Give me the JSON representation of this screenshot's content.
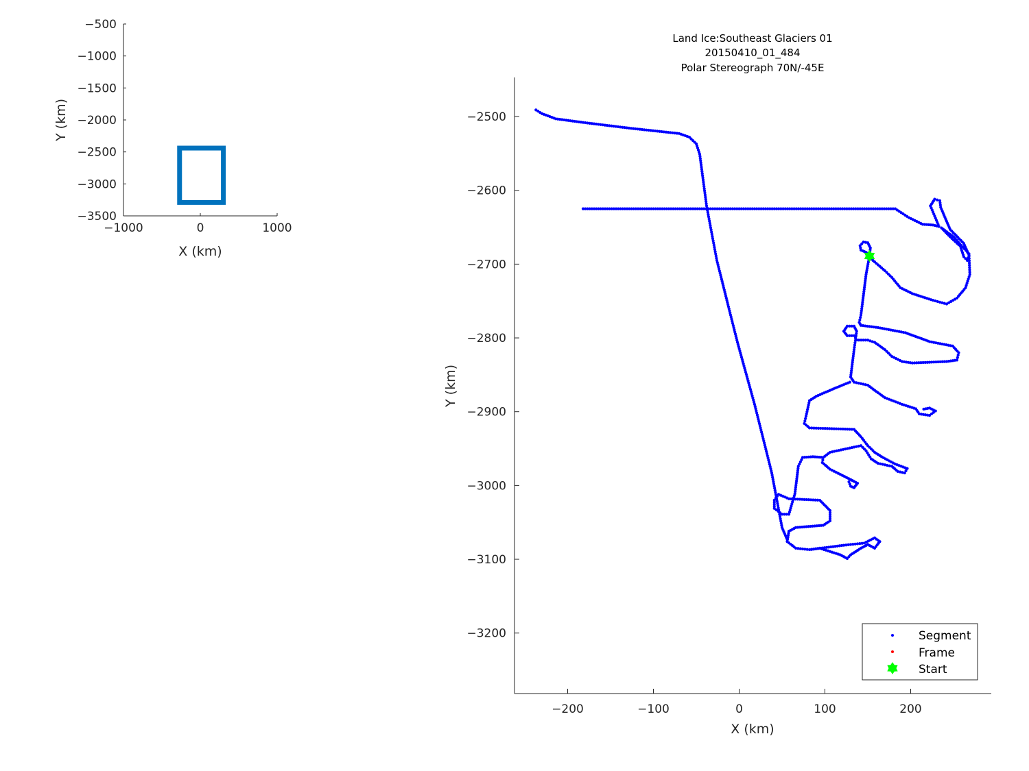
{
  "chart_data": [
    {
      "type": "scatter",
      "xlabel": "X (km)",
      "ylabel": "Y (km)",
      "xlim": [
        -1000,
        1000
      ],
      "ylim": [
        -3500,
        -500
      ],
      "xticks": [
        "-1000",
        "0",
        "1000"
      ],
      "yticks": [
        "-500",
        "-1000",
        "-1500",
        "-2000",
        "-2500",
        "-3000",
        "-3500"
      ],
      "box": {
        "x": [
          -270,
          300
        ],
        "y": [
          -3290,
          -2440
        ]
      },
      "color": "#0072BD"
    },
    {
      "type": "scatter",
      "title": [
        "Land Ice:Southeast Glaciers 01",
        "20150410_01_484",
        "Polar Stereograph 70N/-45E"
      ],
      "xlabel": "X (km)",
      "ylabel": "Y (km)",
      "xlim": [
        -262,
        294
      ],
      "ylim": [
        -3282,
        -2447
      ],
      "xticks": [
        "-200",
        "-100",
        "0",
        "100",
        "200"
      ],
      "yticks": [
        "-2500",
        "-2600",
        "-2700",
        "-2800",
        "-2900",
        "-3000",
        "-3100",
        "-3200"
      ],
      "legend": {
        "placement": "bottom-right",
        "entries": [
          {
            "name": "Segment",
            "color": "#0000FF",
            "marker": "dot"
          },
          {
            "name": "Frame",
            "color": "#FF0000",
            "marker": "dot"
          },
          {
            "name": "Start",
            "color": "#00FF00",
            "marker": "hexagram"
          }
        ]
      },
      "start": [
        152,
        -2689
      ],
      "segment_tracks": [
        [
          [
            -237,
            -2491
          ],
          [
            -230,
            -2496
          ],
          [
            -214,
            -2503
          ],
          [
            -182,
            -2508
          ],
          [
            -126,
            -2516
          ],
          [
            -70,
            -2523
          ],
          [
            -58,
            -2528
          ],
          [
            -50,
            -2537
          ],
          [
            -46,
            -2551
          ],
          [
            -38,
            -2621
          ],
          [
            -26,
            -2695
          ],
          [
            -2,
            -2806
          ],
          [
            18,
            -2890
          ],
          [
            38,
            -2983
          ],
          [
            50,
            -3057
          ],
          [
            57,
            -3076
          ]
        ],
        [
          [
            -182,
            -2625
          ],
          [
            182,
            -2625
          ],
          [
            198,
            -2637
          ],
          [
            214,
            -2646
          ],
          [
            226,
            -2647
          ],
          [
            233,
            -2649
          ],
          [
            223,
            -2621
          ],
          [
            228,
            -2612
          ],
          [
            234,
            -2614
          ],
          [
            235,
            -2623
          ],
          [
            246,
            -2653
          ],
          [
            262,
            -2672
          ],
          [
            268,
            -2688
          ],
          [
            266,
            -2695
          ],
          [
            262,
            -2690
          ],
          [
            258,
            -2676
          ],
          [
            246,
            -2663
          ],
          [
            236,
            -2651
          ],
          [
            250,
            -2663
          ],
          [
            268,
            -2686
          ],
          [
            269,
            -2714
          ],
          [
            264,
            -2732
          ],
          [
            254,
            -2746
          ],
          [
            242,
            -2754
          ],
          [
            226,
            -2749
          ],
          [
            202,
            -2740
          ],
          [
            188,
            -2732
          ],
          [
            178,
            -2718
          ],
          [
            170,
            -2709
          ],
          [
            154,
            -2693
          ],
          [
            153,
            -2689
          ]
        ],
        [
          [
            153,
            -2689
          ],
          [
            148,
            -2684
          ],
          [
            142,
            -2681
          ],
          [
            141,
            -2675
          ],
          [
            145,
            -2670
          ],
          [
            150,
            -2671
          ],
          [
            153,
            -2678
          ],
          [
            152,
            -2689
          ],
          [
            148,
            -2714
          ],
          [
            142,
            -2769
          ],
          [
            140,
            -2779
          ],
          [
            142,
            -2783
          ],
          [
            162,
            -2786
          ],
          [
            194,
            -2793
          ],
          [
            222,
            -2805
          ],
          [
            249,
            -2811
          ],
          [
            256,
            -2820
          ],
          [
            254,
            -2830
          ],
          [
            242,
            -2832
          ],
          [
            202,
            -2834
          ],
          [
            190,
            -2832
          ],
          [
            178,
            -2825
          ],
          [
            170,
            -2816
          ],
          [
            158,
            -2806
          ],
          [
            150,
            -2803
          ],
          [
            137,
            -2803
          ],
          [
            134,
            -2797
          ],
          [
            126,
            -2797
          ],
          [
            122,
            -2791
          ],
          [
            126,
            -2784
          ],
          [
            134,
            -2784
          ],
          [
            137,
            -2791
          ],
          [
            134,
            -2816
          ],
          [
            130,
            -2853
          ],
          [
            134,
            -2860
          ],
          [
            150,
            -2864
          ],
          [
            158,
            -2871
          ],
          [
            170,
            -2881
          ],
          [
            190,
            -2890
          ],
          [
            206,
            -2896
          ],
          [
            210,
            -2903
          ],
          [
            222,
            -2905
          ],
          [
            229,
            -2899
          ],
          [
            222,
            -2895
          ],
          [
            213,
            -2897
          ]
        ],
        [
          [
            129,
            -2860
          ],
          [
            110,
            -2869
          ],
          [
            90,
            -2879
          ],
          [
            82,
            -2885
          ],
          [
            78,
            -2906
          ],
          [
            76,
            -2916
          ],
          [
            82,
            -2922
          ],
          [
            134,
            -2924
          ],
          [
            142,
            -2934
          ],
          [
            150,
            -2946
          ],
          [
            158,
            -2955
          ],
          [
            166,
            -2961
          ],
          [
            182,
            -2971
          ],
          [
            196,
            -2977
          ],
          [
            193,
            -2983
          ],
          [
            185,
            -2981
          ],
          [
            178,
            -2974
          ],
          [
            162,
            -2970
          ],
          [
            154,
            -2964
          ],
          [
            148,
            -2953
          ],
          [
            142,
            -2946
          ],
          [
            134,
            -2948
          ],
          [
            106,
            -2955
          ],
          [
            98,
            -2962
          ],
          [
            97,
            -2969
          ],
          [
            106,
            -2978
          ],
          [
            118,
            -2985
          ],
          [
            130,
            -2992
          ],
          [
            138,
            -2997
          ],
          [
            134,
            -3003
          ],
          [
            130,
            -3001
          ],
          [
            128,
            -2995
          ],
          [
            130,
            -2992
          ]
        ],
        [
          [
            98,
            -2962
          ],
          [
            86,
            -2961
          ],
          [
            74,
            -2962
          ],
          [
            69,
            -2974
          ],
          [
            65,
            -3011
          ],
          [
            58,
            -3039
          ],
          [
            50,
            -3039
          ],
          [
            41,
            -3031
          ],
          [
            41,
            -3020
          ],
          [
            46,
            -3012
          ],
          [
            58,
            -3018
          ],
          [
            94,
            -3020
          ],
          [
            106,
            -3034
          ],
          [
            106,
            -3048
          ],
          [
            98,
            -3054
          ],
          [
            66,
            -3057
          ],
          [
            58,
            -3062
          ],
          [
            56,
            -3076
          ],
          [
            66,
            -3085
          ],
          [
            82,
            -3087
          ],
          [
            122,
            -3081
          ],
          [
            146,
            -3078
          ],
          [
            158,
            -3071
          ],
          [
            164,
            -3076
          ],
          [
            158,
            -3085
          ],
          [
            150,
            -3080
          ],
          [
            142,
            -3085
          ],
          [
            130,
            -3094
          ],
          [
            126,
            -3099
          ],
          [
            118,
            -3094
          ],
          [
            94,
            -3085
          ],
          [
            82,
            -3087
          ]
        ]
      ]
    }
  ]
}
